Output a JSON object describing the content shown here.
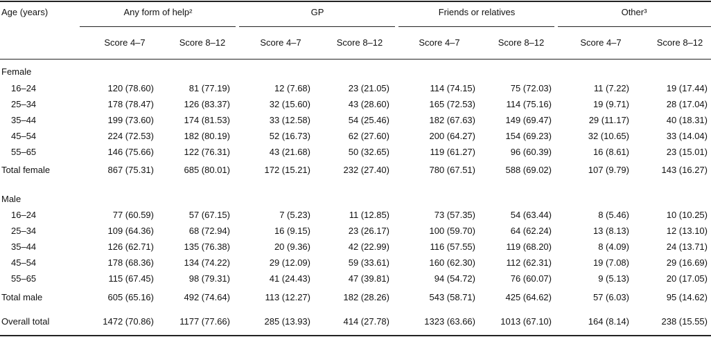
{
  "header": {
    "stub": "Age (years)",
    "groups": [
      "Any form of help²",
      "GP",
      "Friends or relatives",
      "Other³"
    ],
    "subheaders": [
      "Score 4–7",
      "Score 8–12",
      "Score 4–7",
      "Score 8–12",
      "Score 4–7",
      "Score 8–12",
      "Score 4–7",
      "Score 8–12"
    ]
  },
  "sections": [
    {
      "label": "Female",
      "rows": [
        {
          "label": "16–24",
          "cells": [
            "120 (78.60)",
            "81 (77.19)",
            "12 (7.68)",
            "23 (21.05)",
            "114 (74.15)",
            "75 (72.03)",
            "11 (7.22)",
            "19 (17.44)"
          ]
        },
        {
          "label": "25–34",
          "cells": [
            "178 (78.47)",
            "126 (83.37)",
            "32 (15.60)",
            "43 (28.60)",
            "165 (72.53)",
            "114 (75.16)",
            "19 (9.71)",
            "28 (17.04)"
          ]
        },
        {
          "label": "35–44",
          "cells": [
            "199 (73.60)",
            "174 (81.53)",
            "33 (12.58)",
            "54 (25.46)",
            "182 (67.63)",
            "149 (69.47)",
            "29 (11.17)",
            "40 (18.31)"
          ]
        },
        {
          "label": "45–54",
          "cells": [
            "224 (72.53)",
            "182 (80.19)",
            "52 (16.73)",
            "62 (27.60)",
            "200 (64.27)",
            "154 (69.23)",
            "32 (10.65)",
            "33 (14.04)"
          ]
        },
        {
          "label": "55–65",
          "cells": [
            "146 (75.66)",
            "122 (76.31)",
            "43 (21.68)",
            "50 (32.65)",
            "119 (61.27)",
            "96 (60.39)",
            "16 (8.61)",
            "23 (15.01)"
          ]
        },
        {
          "label": "Total female",
          "cells": [
            "867 (75.31)",
            "685 (80.01)",
            "172 (15.21)",
            "232 (27.40)",
            "780 (67.51)",
            "588 (69.02)",
            "107 (9.79)",
            "143 (16.27)"
          ]
        }
      ]
    },
    {
      "label": "Male",
      "rows": [
        {
          "label": "16–24",
          "cells": [
            "77 (60.59)",
            "57 (67.15)",
            "7 (5.23)",
            "11 (12.85)",
            "73 (57.35)",
            "54 (63.44)",
            "8 (5.46)",
            "10 (10.25)"
          ]
        },
        {
          "label": "25–34",
          "cells": [
            "109 (64.36)",
            "68 (72.94)",
            "16 (9.15)",
            "23 (26.17)",
            "100 (59.70)",
            "64 (62.24)",
            "13 (8.13)",
            "12 (13.10)"
          ]
        },
        {
          "label": "35–44",
          "cells": [
            "126 (62.71)",
            "135 (76.38)",
            "20 (9.36)",
            "42 (22.99)",
            "116 (57.55)",
            "119 (68.20)",
            "8 (4.09)",
            "24 (13.71)"
          ]
        },
        {
          "label": "45–54",
          "cells": [
            "178 (68.36)",
            "134 (74.22)",
            "29 (12.09)",
            "59 (33.61)",
            "160 (62.30)",
            "112 (62.31)",
            "19 (7.08)",
            "29 (16.69)"
          ]
        },
        {
          "label": "55–65",
          "cells": [
            "115 (67.45)",
            "98 (79.31)",
            "41 (24.43)",
            "47 (39.81)",
            "94 (54.72)",
            "76 (60.07)",
            "9 (5.13)",
            "20 (17.05)"
          ]
        },
        {
          "label": "Total male",
          "cells": [
            "605 (65.16)",
            "492 (74.64)",
            "113 (12.27)",
            "182 (28.26)",
            "543 (58.71)",
            "425 (64.62)",
            "57 (6.03)",
            "95 (14.62)"
          ]
        }
      ]
    }
  ],
  "overall": {
    "label": "Overall total",
    "cells": [
      "1472 (70.86)",
      "1177 (77.66)",
      "285 (13.93)",
      "414 (27.78)",
      "1323 (63.66)",
      "1013 (67.10)",
      "164 (8.14)",
      "238 (15.55)"
    ]
  }
}
